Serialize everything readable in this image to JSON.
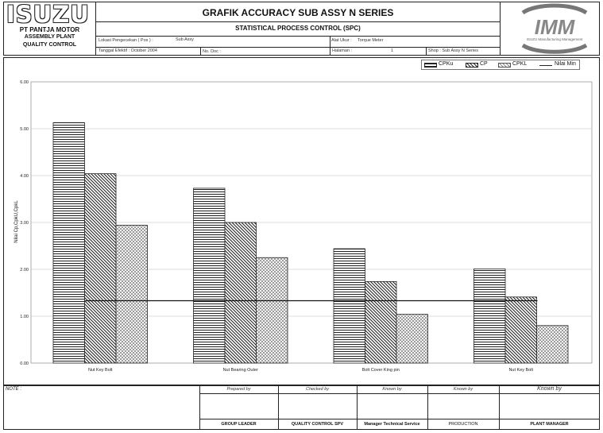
{
  "header": {
    "logo_text": "ISUZU",
    "company": "PT PANTJA MOTOR",
    "plant": "ASSEMBLY PLANT",
    "dept": "QUALITY CONTROL",
    "title": "GRAFIK ACCURACY SUB ASSY N SERIES",
    "subtitle": "STATISTICAL PROCESS CONTROL (SPC)",
    "imm_logo_text": "IMM",
    "imm_caption": "ISUZU Manufacturing Management",
    "lokasi_label": "Lokasi Pengecekan ( Pos ) :",
    "lokasi_value": "Sub Assy",
    "alat_label": "Alat Ukur :",
    "alat_value": "Torque Meter",
    "tanggal_label": "Tanggal Efektif : October 2004",
    "nodoc_label": "No. Doc :",
    "halaman_label": "Halaman :",
    "halaman_value": "1",
    "shop_label": "Shop : Sub Assy N Series"
  },
  "chart_data": {
    "type": "bar",
    "title": "",
    "ylabel": "Nilai Cp,CpkU,CpkL",
    "xlabel": "",
    "ylim": [
      0,
      6
    ],
    "yticks": [
      "0.00",
      "1.00",
      "2.00",
      "3.00",
      "4.00",
      "5.00",
      "6.00"
    ],
    "categories": [
      "Nut Key Bolt",
      "Nut Bearing Outer",
      "Bolt Cover King pin",
      "Nut Key Bolt"
    ],
    "series": [
      {
        "name": "CPKu",
        "values": [
          5.13,
          3.73,
          2.44,
          2.01
        ]
      },
      {
        "name": "CP",
        "values": [
          4.04,
          3.0,
          1.74,
          1.41
        ]
      },
      {
        "name": "CPKL",
        "values": [
          2.94,
          2.25,
          1.04,
          0.8
        ]
      }
    ],
    "reference_line": {
      "name": "Nilai Min",
      "value": 1.33
    },
    "legend_position": "top-right",
    "grid": true
  },
  "footer": {
    "note_label": "NOTE :",
    "columns": [
      {
        "top": "Prepared by",
        "bottom": "GROUP LEADER"
      },
      {
        "top": "Checked by",
        "bottom": "QUALITY CONTROL SPV"
      },
      {
        "top": "Known by",
        "bottom": "Manager Technical Service"
      },
      {
        "top": "Known by",
        "bottom": "PRODUCTION"
      },
      {
        "top": "Known by",
        "bottom": "PLANT MANAGER"
      }
    ]
  }
}
